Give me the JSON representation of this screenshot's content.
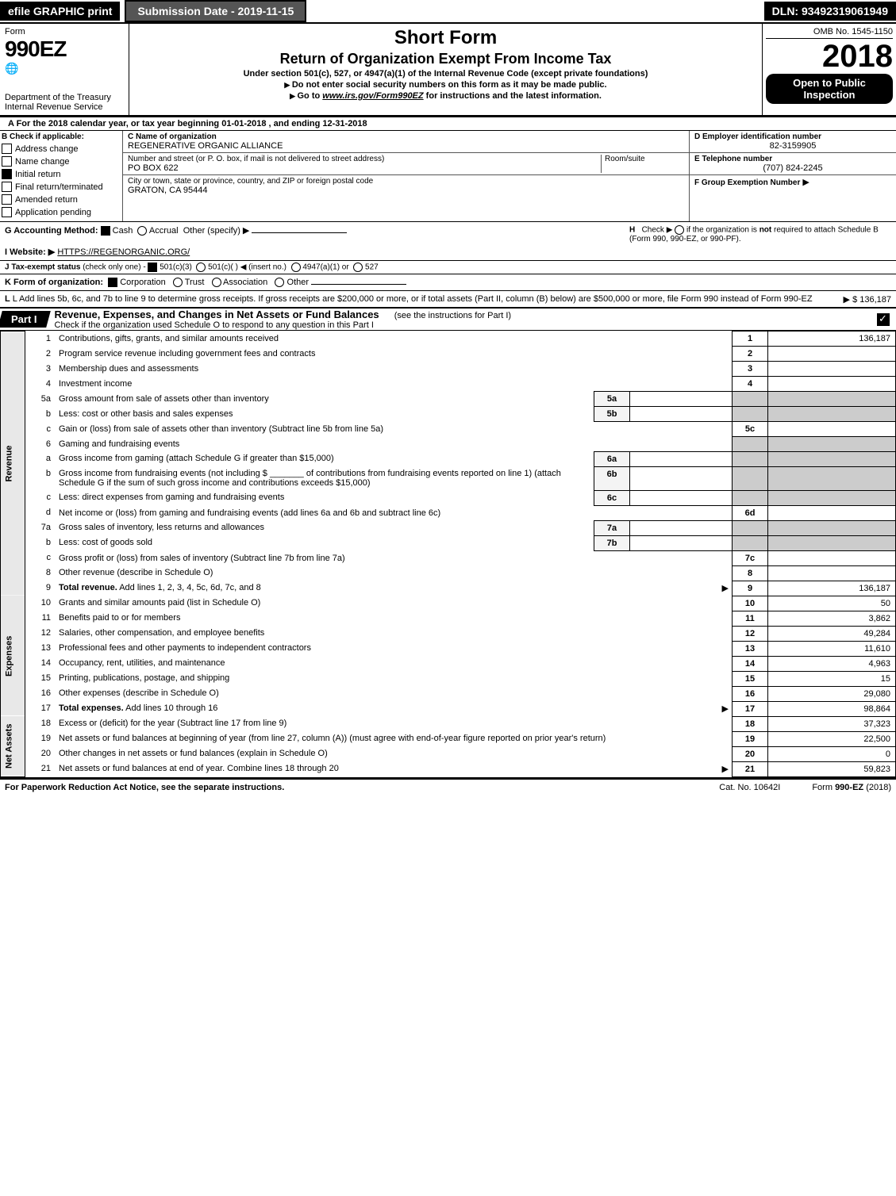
{
  "top_bar": {
    "efile_label": "efile GRAPHIC print",
    "submission_date_label": "Submission Date - 2019-11-15",
    "dln_label": "DLN: 93492319061949"
  },
  "header": {
    "form_label": "Form",
    "form_number": "990EZ",
    "treasury": "Department of the Treasury",
    "irs": "Internal Revenue Service",
    "title1": "Short Form",
    "title2": "Return of Organization Exempt From Income Tax",
    "subtitle1": "Under section 501(c), 527, or 4947(a)(1) of the Internal Revenue Code (except private foundations)",
    "subtitle2": "Do not enter social security numbers on this form as it may be made public.",
    "subtitle3_prefix": "Go to ",
    "subtitle3_link": "www.irs.gov/Form990EZ",
    "subtitle3_suffix": " for instructions and the latest information.",
    "omb": "OMB No. 1545-1150",
    "year": "2018",
    "open_public": "Open to Public Inspection"
  },
  "line_a": {
    "prefix": "A For the 2018 calendar year, or tax year beginning ",
    "begin": "01-01-2018",
    "middle": ", and ending ",
    "end": "12-31-2018"
  },
  "section_b": {
    "b_label": "B Check if applicable:",
    "checks": [
      {
        "label": "Address change",
        "checked": false
      },
      {
        "label": "Name change",
        "checked": false
      },
      {
        "label": "Initial return",
        "checked": true
      },
      {
        "label": "Final return/terminated",
        "checked": false
      },
      {
        "label": "Amended return",
        "checked": false
      },
      {
        "label": "Application pending",
        "checked": false
      }
    ],
    "c_label": "C Name of organization",
    "org_name": "REGENERATIVE ORGANIC ALLIANCE",
    "street_label": "Number and street (or P. O. box, if mail is not delivered to street address)",
    "room_label": "Room/suite",
    "street": "PO BOX 622",
    "city_label": "City or town, state or province, country, and ZIP or foreign postal code",
    "city": "GRATON, CA  95444",
    "d_label": "D Employer identification number",
    "ein": "82-3159905",
    "e_label": "E Telephone number",
    "phone": "(707) 824-2245",
    "f_label": "F Group Exemption Number",
    "f_arrow": "▶"
  },
  "line_g": {
    "label": "G Accounting Method:",
    "cash": "Cash",
    "accrual": "Accrual",
    "other": "Other (specify) ▶",
    "cash_checked": true,
    "h_label": "H",
    "h_text": "Check ▶",
    "h_suffix1": "if the organization is ",
    "h_not": "not",
    "h_suffix2": " required to attach Schedule B (Form 990, 990-EZ, or 990-PF)."
  },
  "line_i": {
    "label": "I Website: ▶",
    "value": "HTTPS://REGENORGANIC.ORG/"
  },
  "line_j": {
    "label": "J Tax-exempt status",
    "note": "(check only one) -",
    "opt1": "501(c)(3)",
    "opt2": "501(c)(  ) ◀ (insert no.)",
    "opt3": "4947(a)(1) or",
    "opt4": "527"
  },
  "line_k": {
    "label": "K Form of organization:",
    "corp": "Corporation",
    "trust": "Trust",
    "assoc": "Association",
    "other": "Other"
  },
  "line_l": {
    "text": "L Add lines 5b, 6c, and 7b to line 9 to determine gross receipts. If gross receipts are $200,000 or more, or if total assets (Part II, column (B) below) are $500,000 or more, file Form 990 instead of Form 990-EZ",
    "amount_label": "▶ $ 136,187"
  },
  "part1": {
    "tag": "Part I",
    "title": "Revenue, Expenses, and Changes in Net Assets or Fund Balances",
    "subtitle": "(see the instructions for Part I)",
    "check_text": "Check if the organization used Schedule O to respond to any question in this Part I"
  },
  "sections": {
    "revenue_label": "Revenue",
    "expenses_label": "Expenses",
    "netassets_label": "Net Assets"
  },
  "lines": [
    {
      "section": "rev",
      "n": "1",
      "desc": "Contributions, gifts, grants, and similar amounts received",
      "box": "1",
      "amount": "136,187"
    },
    {
      "section": "rev",
      "n": "2",
      "desc": "Program service revenue including government fees and contracts",
      "box": "2",
      "amount": ""
    },
    {
      "section": "rev",
      "n": "3",
      "desc": "Membership dues and assessments",
      "box": "3",
      "amount": ""
    },
    {
      "section": "rev",
      "n": "4",
      "desc": "Investment income",
      "box": "4",
      "amount": ""
    },
    {
      "section": "rev",
      "n": "5a",
      "desc": "Gross amount from sale of assets other than inventory",
      "sub": "5a",
      "shaded": true
    },
    {
      "section": "rev",
      "n": "b",
      "desc": "Less: cost or other basis and sales expenses",
      "sub": "5b",
      "shaded": true
    },
    {
      "section": "rev",
      "n": "c",
      "desc": "Gain or (loss) from sale of assets other than inventory (Subtract line 5b from line 5a)",
      "box": "5c",
      "amount": ""
    },
    {
      "section": "rev",
      "n": "6",
      "desc": "Gaming and fundraising events",
      "shaded": true,
      "noline": true
    },
    {
      "section": "rev",
      "n": "a",
      "desc": "Gross income from gaming (attach Schedule G if greater than $15,000)",
      "sub": "6a",
      "shaded": true
    },
    {
      "section": "rev",
      "n": "b",
      "desc": "Gross income from fundraising events (not including $ _______ of contributions from fundraising events reported on line 1) (attach Schedule G if the sum of such gross income and contributions exceeds $15,000)",
      "sub": "6b",
      "shaded": true
    },
    {
      "section": "rev",
      "n": "c",
      "desc": "Less: direct expenses from gaming and fundraising events",
      "sub": "6c",
      "shaded": true
    },
    {
      "section": "rev",
      "n": "d",
      "desc": "Net income or (loss) from gaming and fundraising events (add lines 6a and 6b and subtract line 6c)",
      "box": "6d",
      "amount": ""
    },
    {
      "section": "rev",
      "n": "7a",
      "desc": "Gross sales of inventory, less returns and allowances",
      "sub": "7a",
      "shaded": true
    },
    {
      "section": "rev",
      "n": "b",
      "desc": "Less: cost of goods sold",
      "sub": "7b",
      "shaded": true
    },
    {
      "section": "rev",
      "n": "c",
      "desc": "Gross profit or (loss) from sales of inventory (Subtract line 7b from line 7a)",
      "box": "7c",
      "amount": ""
    },
    {
      "section": "rev",
      "n": "8",
      "desc": "Other revenue (describe in Schedule O)",
      "box": "8",
      "amount": ""
    },
    {
      "section": "rev",
      "n": "9",
      "desc": "Total revenue. Add lines 1, 2, 3, 4, 5c, 6d, 7c, and 8",
      "box": "9",
      "amount": "136,187",
      "bold": true,
      "arrow": true
    },
    {
      "section": "exp",
      "n": "10",
      "desc": "Grants and similar amounts paid (list in Schedule O)",
      "box": "10",
      "amount": "50"
    },
    {
      "section": "exp",
      "n": "11",
      "desc": "Benefits paid to or for members",
      "box": "11",
      "amount": "3,862"
    },
    {
      "section": "exp",
      "n": "12",
      "desc": "Salaries, other compensation, and employee benefits",
      "box": "12",
      "amount": "49,284"
    },
    {
      "section": "exp",
      "n": "13",
      "desc": "Professional fees and other payments to independent contractors",
      "box": "13",
      "amount": "11,610"
    },
    {
      "section": "exp",
      "n": "14",
      "desc": "Occupancy, rent, utilities, and maintenance",
      "box": "14",
      "amount": "4,963"
    },
    {
      "section": "exp",
      "n": "15",
      "desc": "Printing, publications, postage, and shipping",
      "box": "15",
      "amount": "15"
    },
    {
      "section": "exp",
      "n": "16",
      "desc": "Other expenses (describe in Schedule O)",
      "box": "16",
      "amount": "29,080"
    },
    {
      "section": "exp",
      "n": "17",
      "desc": "Total expenses. Add lines 10 through 16",
      "box": "17",
      "amount": "98,864",
      "bold": true,
      "arrow": true
    },
    {
      "section": "net",
      "n": "18",
      "desc": "Excess or (deficit) for the year (Subtract line 17 from line 9)",
      "box": "18",
      "amount": "37,323"
    },
    {
      "section": "net",
      "n": "19",
      "desc": "Net assets or fund balances at beginning of year (from line 27, column (A)) (must agree with end-of-year figure reported on prior year's return)",
      "box": "19",
      "amount": "22,500"
    },
    {
      "section": "net",
      "n": "20",
      "desc": "Other changes in net assets or fund balances (explain in Schedule O)",
      "box": "20",
      "amount": "0"
    },
    {
      "section": "net",
      "n": "21",
      "desc": "Net assets or fund balances at end of year. Combine lines 18 through 20",
      "box": "21",
      "amount": "59,823",
      "arrow": true
    }
  ],
  "footer": {
    "paperwork": "For Paperwork Reduction Act Notice, see the separate instructions.",
    "cat": "Cat. No. 10642I",
    "form_end": "Form 990-EZ (2018)"
  },
  "colors": {
    "black": "#000000",
    "white": "#ffffff",
    "darkgray": "#555555",
    "shade": "#cccccc",
    "lightshade": "#e8e8e8"
  }
}
